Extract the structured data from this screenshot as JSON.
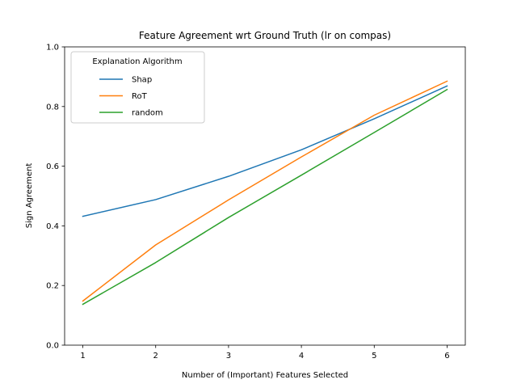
{
  "chart_data": {
    "type": "line",
    "title": "Feature Agreement wrt Ground Truth (lr on compas)",
    "xlabel": "Number of (Important) Features Selected",
    "ylabel": "Sign Agreement",
    "x": [
      1,
      2,
      3,
      4,
      5,
      6
    ],
    "xlim": [
      0.75,
      6.25
    ],
    "ylim": [
      0.0,
      1.0
    ],
    "xticks": [
      "1",
      "2",
      "3",
      "4",
      "5",
      "6"
    ],
    "yticks": [
      "0.0",
      "0.2",
      "0.4",
      "0.6",
      "0.8",
      "1.0"
    ],
    "grid": false,
    "legend": {
      "title": "Explanation Algorithm",
      "placement": "top-left"
    },
    "series": [
      {
        "name": "Shap",
        "color": "#1f77b4",
        "values": [
          0.432,
          0.488,
          0.566,
          0.655,
          0.759,
          0.869
        ]
      },
      {
        "name": "RoT",
        "color": "#ff7f0e",
        "values": [
          0.148,
          0.336,
          0.487,
          0.631,
          0.771,
          0.885
        ]
      },
      {
        "name": "random",
        "color": "#2ca02c",
        "values": [
          0.137,
          0.277,
          0.428,
          0.57,
          0.713,
          0.857
        ]
      }
    ]
  }
}
